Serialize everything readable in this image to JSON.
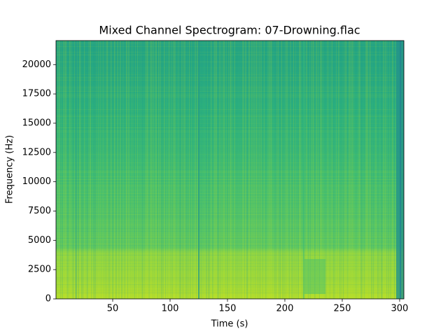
{
  "chart_data": {
    "type": "spectrogram",
    "title": "Mixed Channel Spectrogram: 07-Drowning.flac",
    "x_label": "Time (s)",
    "y_label": "Frequency (Hz)",
    "xlim": [
      0.6,
      303.7
    ],
    "ylim": [
      0,
      22050
    ],
    "xticks": [
      50,
      100,
      150,
      200,
      250,
      300
    ],
    "yticks": [
      0,
      2500,
      5000,
      7500,
      10000,
      12500,
      15000,
      17500,
      20000
    ]
  }
}
